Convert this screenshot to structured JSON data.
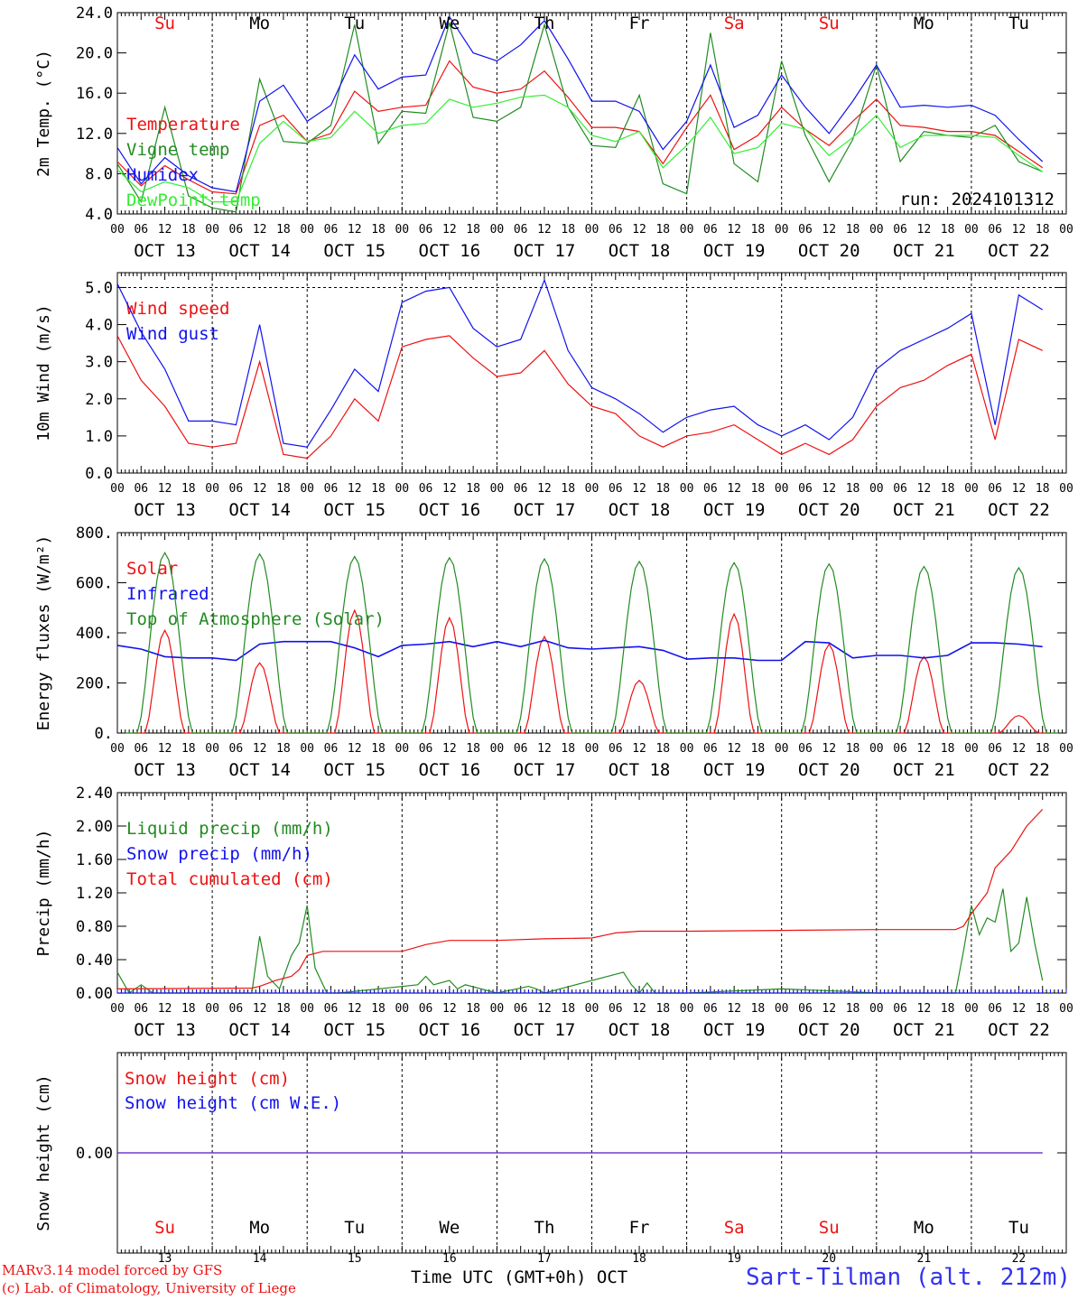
{
  "run_label": "run: 2024101312",
  "x_axis_hour_ticks": [
    "00",
    "06",
    "12",
    "18"
  ],
  "date_labels": [
    "OCT 13",
    "OCT 14",
    "OCT 15",
    "OCT 16",
    "OCT 17",
    "OCT 18",
    "OCT 19",
    "OCT 20",
    "OCT 21",
    "OCT 22"
  ],
  "weekday_labels": [
    "Su",
    "Mo",
    "Tu",
    "We",
    "Th",
    "Fr",
    "Sa",
    "Su",
    "Mo",
    "Tu"
  ],
  "weekday_colors": [
    "#ee1111",
    "#000000",
    "#000000",
    "#000000",
    "#000000",
    "#000000",
    "#ee1111",
    "#ee1111",
    "#000000",
    "#000000"
  ],
  "bottom_day_numbers": [
    "13",
    "14",
    "15",
    "16",
    "17",
    "18",
    "19",
    "20",
    "21",
    "22"
  ],
  "footer": {
    "model": "MARv3.14 model forced by GFS",
    "lab": "(c) Lab. of Climatology, University of Liege",
    "xlabel": "Time UTC (GMT+0h) OCT",
    "station": "Sart-Tilman (alt. 212m)"
  },
  "chart_data": [
    {
      "type": "line",
      "ylabel": "2m Temp. (°C)",
      "ylim": [
        4,
        24
      ],
      "yticks": [
        "4.0",
        "8.0",
        "12.0",
        "16.0",
        "20.0",
        "24.0"
      ],
      "x_unit": "hours since OCT 13 00 UTC",
      "series": [
        {
          "name": "Temperature",
          "color": "#ee1111",
          "x": [
            0,
            6,
            12,
            18,
            24,
            30,
            36,
            42,
            48,
            54,
            60,
            66,
            72,
            78,
            84,
            90,
            96,
            102,
            108,
            114,
            120,
            126,
            132,
            138,
            144,
            150,
            156,
            162,
            168,
            174,
            180,
            186,
            192,
            198,
            204,
            210,
            216,
            222,
            228,
            234
          ],
          "values": [
            9.2,
            6.8,
            8.8,
            7.4,
            6.2,
            6.0,
            12.8,
            13.8,
            11.2,
            12.0,
            16.2,
            14.2,
            14.6,
            14.8,
            19.2,
            16.6,
            16.0,
            16.4,
            18.2,
            15.6,
            12.6,
            12.6,
            12.2,
            9.0,
            12.6,
            15.8,
            10.4,
            11.8,
            14.6,
            12.4,
            10.8,
            13.2,
            15.4,
            12.8,
            12.6,
            12.2,
            12.2,
            11.8,
            10.2,
            8.6
          ]
        },
        {
          "name": "Vigne temp",
          "color": "#228b22",
          "x": [
            0,
            6,
            12,
            18,
            24,
            30,
            36,
            42,
            48,
            54,
            60,
            66,
            72,
            78,
            84,
            90,
            96,
            102,
            108,
            114,
            120,
            126,
            132,
            138,
            144,
            150,
            156,
            162,
            168,
            174,
            180,
            186,
            192,
            198,
            204,
            210,
            216,
            222,
            228,
            234
          ],
          "values": [
            9.0,
            5.2,
            14.6,
            5.8,
            4.6,
            4.2,
            17.4,
            11.2,
            11.0,
            12.8,
            22.8,
            11.0,
            14.2,
            14.0,
            23.0,
            13.6,
            13.2,
            14.6,
            22.8,
            14.6,
            10.8,
            10.6,
            15.8,
            7.0,
            6.0,
            22.0,
            9.0,
            7.2,
            19.2,
            11.8,
            7.2,
            11.4,
            18.8,
            9.2,
            12.2,
            11.8,
            11.6,
            12.8,
            9.2,
            8.2
          ]
        },
        {
          "name": "Humidex",
          "color": "#1111ee",
          "x": [
            0,
            6,
            12,
            18,
            24,
            30,
            36,
            42,
            48,
            54,
            60,
            66,
            72,
            78,
            84,
            90,
            96,
            102,
            108,
            114,
            120,
            126,
            132,
            138,
            144,
            150,
            156,
            162,
            168,
            174,
            180,
            186,
            192,
            198,
            204,
            210,
            216,
            222,
            228,
            234
          ],
          "values": [
            10.6,
            7.0,
            9.6,
            7.8,
            6.6,
            6.2,
            15.2,
            16.8,
            13.2,
            14.8,
            19.8,
            16.4,
            17.6,
            17.8,
            23.6,
            20.0,
            19.2,
            20.8,
            23.2,
            19.4,
            15.2,
            15.2,
            14.2,
            10.4,
            13.2,
            18.8,
            12.6,
            13.8,
            17.8,
            14.6,
            12.0,
            15.2,
            18.8,
            14.6,
            14.8,
            14.6,
            14.8,
            13.8,
            11.4,
            9.2
          ]
        },
        {
          "name": "DewPoint temp",
          "color": "#33ee33",
          "x": [
            0,
            6,
            12,
            18,
            24,
            30,
            36,
            42,
            48,
            54,
            60,
            66,
            72,
            78,
            84,
            90,
            96,
            102,
            108,
            114,
            120,
            126,
            132,
            138,
            144,
            150,
            156,
            162,
            168,
            174,
            180,
            186,
            192,
            198,
            204,
            210,
            216,
            222,
            228,
            234
          ],
          "values": [
            8.4,
            6.2,
            7.2,
            6.6,
            5.2,
            5.2,
            11.0,
            13.2,
            11.2,
            11.6,
            14.2,
            12.0,
            12.8,
            13.0,
            15.4,
            14.6,
            15.0,
            15.6,
            15.8,
            14.6,
            11.8,
            11.2,
            12.2,
            8.6,
            10.8,
            13.6,
            10.0,
            10.6,
            13.0,
            12.4,
            9.8,
            11.6,
            13.8,
            10.6,
            11.8,
            11.8,
            11.8,
            11.6,
            9.8,
            8.2
          ]
        }
      ]
    },
    {
      "type": "line",
      "ylabel": "10m Wind (m/s)",
      "ylim": [
        0,
        5.4
      ],
      "yticks": [
        "0.0",
        "1.0",
        "2.0",
        "3.0",
        "4.0",
        "5.0"
      ],
      "x_unit": "hours since OCT 13 00 UTC",
      "series": [
        {
          "name": "Wind speed",
          "color": "#ee1111",
          "x": [
            0,
            6,
            12,
            18,
            24,
            30,
            36,
            42,
            48,
            54,
            60,
            66,
            72,
            78,
            84,
            90,
            96,
            102,
            108,
            114,
            120,
            126,
            132,
            138,
            144,
            150,
            156,
            162,
            168,
            174,
            180,
            186,
            192,
            198,
            204,
            210,
            216,
            222,
            228,
            234
          ],
          "values": [
            3.7,
            2.5,
            1.8,
            0.8,
            0.7,
            0.8,
            3.0,
            0.5,
            0.4,
            1.0,
            2.0,
            1.4,
            3.4,
            3.6,
            3.7,
            3.1,
            2.6,
            2.7,
            3.3,
            2.4,
            1.8,
            1.6,
            1.0,
            0.7,
            1.0,
            1.1,
            1.3,
            0.9,
            0.5,
            0.8,
            0.5,
            0.9,
            1.8,
            2.3,
            2.5,
            2.9,
            3.2,
            0.9,
            3.6,
            3.3
          ]
        },
        {
          "name": "Wind gust",
          "color": "#1111ee",
          "x": [
            0,
            6,
            12,
            18,
            24,
            30,
            36,
            42,
            48,
            54,
            60,
            66,
            72,
            78,
            84,
            90,
            96,
            102,
            108,
            114,
            120,
            126,
            132,
            138,
            144,
            150,
            156,
            162,
            168,
            174,
            180,
            186,
            192,
            198,
            204,
            210,
            216,
            222,
            228,
            234
          ],
          "values": [
            5.1,
            3.8,
            2.8,
            1.4,
            1.4,
            1.3,
            4.0,
            0.8,
            0.7,
            1.7,
            2.8,
            2.2,
            4.6,
            4.9,
            5.0,
            3.9,
            3.4,
            3.6,
            5.2,
            3.3,
            2.3,
            2.0,
            1.6,
            1.1,
            1.5,
            1.7,
            1.8,
            1.3,
            1.0,
            1.3,
            0.9,
            1.5,
            2.8,
            3.3,
            3.6,
            3.9,
            4.3,
            1.3,
            4.8,
            4.4
          ]
        }
      ]
    },
    {
      "type": "line",
      "ylabel": "Energy fluxes (W/m²)",
      "ylim": [
        0,
        800
      ],
      "yticks": [
        "0.",
        "200.",
        "400.",
        "600.",
        "800."
      ],
      "x_unit": "hours since OCT 13 00 UTC",
      "series": [
        {
          "name": "Solar",
          "color": "#ee1111",
          "peaks": [
            {
              "center": 12,
              "value": 410
            },
            {
              "center": 36,
              "value": 280
            },
            {
              "center": 60,
              "value": 490
            },
            {
              "center": 84,
              "value": 460
            },
            {
              "center": 108,
              "value": 385
            },
            {
              "center": 132,
              "value": 210
            },
            {
              "center": 156,
              "value": 475
            },
            {
              "center": 180,
              "value": 355
            },
            {
              "center": 204,
              "value": 305
            },
            {
              "center": 228,
              "value": 70
            }
          ]
        },
        {
          "name": "Infrared",
          "color": "#1111ee",
          "x": [
            0,
            6,
            12,
            18,
            24,
            30,
            36,
            42,
            48,
            54,
            60,
            66,
            72,
            78,
            84,
            90,
            96,
            102,
            108,
            114,
            120,
            126,
            132,
            138,
            144,
            150,
            156,
            162,
            168,
            174,
            180,
            186,
            192,
            198,
            204,
            210,
            216,
            222,
            228,
            234
          ],
          "values": [
            350,
            335,
            305,
            300,
            300,
            290,
            355,
            365,
            365,
            365,
            340,
            305,
            350,
            355,
            365,
            345,
            365,
            345,
            370,
            340,
            335,
            340,
            345,
            330,
            295,
            300,
            300,
            290,
            290,
            365,
            360,
            300,
            310,
            310,
            300,
            310,
            360,
            360,
            355,
            345
          ]
        },
        {
          "name": "Top of Atmosphere (Solar)",
          "color": "#228b22",
          "peaks": [
            {
              "center": 12,
              "value": 720
            },
            {
              "center": 36,
              "value": 715
            },
            {
              "center": 60,
              "value": 705
            },
            {
              "center": 84,
              "value": 700
            },
            {
              "center": 108,
              "value": 695
            },
            {
              "center": 132,
              "value": 685
            },
            {
              "center": 156,
              "value": 680
            },
            {
              "center": 180,
              "value": 675
            },
            {
              "center": 204,
              "value": 665
            },
            {
              "center": 228,
              "value": 660
            }
          ]
        }
      ]
    },
    {
      "type": "line",
      "ylabel": "Precip (mm/h)",
      "ylim": [
        0,
        2.4
      ],
      "yticks": [
        "0.00",
        "0.40",
        "0.80",
        "1.20",
        "1.60",
        "2.00",
        "2.40"
      ],
      "x_unit": "hours since OCT 13 00 UTC",
      "series": [
        {
          "name": "Liquid precip (mm/h)",
          "color": "#228b22",
          "x": [
            0,
            3,
            6,
            9,
            12,
            30,
            34,
            36,
            38,
            41,
            44,
            46,
            48,
            50,
            53,
            56,
            76,
            78,
            80,
            84,
            86,
            88,
            96,
            104,
            106,
            108,
            128,
            130,
            132,
            134,
            136,
            138,
            140,
            144,
            168,
            184,
            192,
            212,
            214,
            216,
            218,
            220,
            222,
            224,
            226,
            228,
            230,
            232,
            234
          ],
          "values": [
            0.25,
            0.0,
            0.1,
            0.0,
            0.0,
            0.0,
            0.0,
            0.68,
            0.2,
            0.05,
            0.45,
            0.6,
            1.05,
            0.3,
            0.0,
            0.0,
            0.1,
            0.2,
            0.1,
            0.15,
            0.05,
            0.1,
            0.0,
            0.08,
            0.05,
            0.0,
            0.25,
            0.1,
            0.0,
            0.12,
            0.0,
            0.0,
            0.0,
            0.0,
            0.05,
            0.02,
            0.0,
            0.0,
            0.5,
            1.05,
            0.7,
            0.9,
            0.85,
            1.25,
            0.5,
            0.6,
            1.15,
            0.6,
            0.15
          ]
        },
        {
          "name": "Snow precip (mm/h)",
          "color": "#1111ee",
          "x": [
            0,
            234
          ],
          "values": [
            0.0,
            0.0
          ]
        },
        {
          "name": "Total cumulated (cm)",
          "color": "#ee1111",
          "x": [
            0,
            34,
            36,
            40,
            44,
            46,
            48,
            52,
            60,
            72,
            78,
            84,
            96,
            108,
            120,
            124,
            126,
            132,
            144,
            168,
            192,
            212,
            214,
            216,
            220,
            222,
            226,
            230,
            234
          ],
          "values": [
            0.05,
            0.06,
            0.08,
            0.15,
            0.2,
            0.28,
            0.45,
            0.5,
            0.5,
            0.5,
            0.58,
            0.63,
            0.63,
            0.65,
            0.66,
            0.7,
            0.72,
            0.74,
            0.74,
            0.75,
            0.76,
            0.76,
            0.8,
            0.95,
            1.2,
            1.5,
            1.7,
            2.0,
            2.2
          ]
        }
      ]
    },
    {
      "type": "line",
      "ylabel": "Snow height (cm)",
      "yticks": [
        "0.00"
      ],
      "x_unit": "hours since OCT 13 00 UTC",
      "series": [
        {
          "name": "Snow height (cm)",
          "color": "#ee1111",
          "x": [
            0,
            234
          ],
          "values": [
            0.0,
            0.0
          ]
        },
        {
          "name": "Snow height (cm W.E.)",
          "color": "#1111ee",
          "x": [
            0,
            234
          ],
          "values": [
            0.0,
            0.0
          ]
        }
      ]
    }
  ]
}
